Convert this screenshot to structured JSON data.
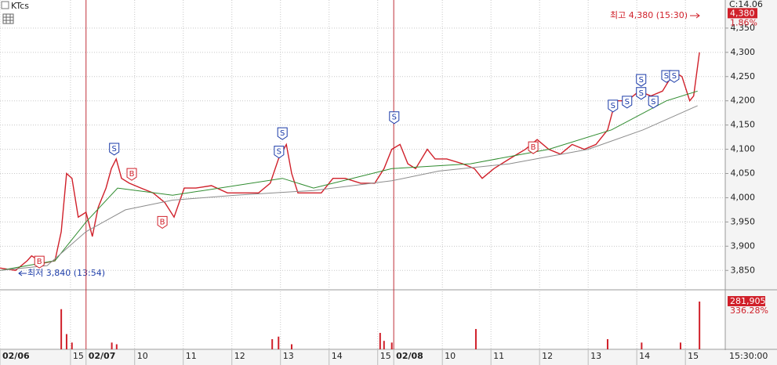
{
  "chart_data": {
    "type": "line",
    "title": "KTcs",
    "header_note": "C:14.06",
    "xlim": [
      0,
      14.92
    ],
    "xticks": [
      {
        "value": 0,
        "label": "02/06"
      },
      {
        "value": 1.45,
        "label": "15"
      },
      {
        "value": 1.77,
        "label": "02/07"
      },
      {
        "value": 2.77,
        "label": "10"
      },
      {
        "value": 3.77,
        "label": "11"
      },
      {
        "value": 4.77,
        "label": "12"
      },
      {
        "value": 5.77,
        "label": "13"
      },
      {
        "value": 6.77,
        "label": "14"
      },
      {
        "value": 7.77,
        "label": "15"
      },
      {
        "value": 8.1,
        "label": "02/08"
      },
      {
        "value": 9.1,
        "label": "10"
      },
      {
        "value": 10.1,
        "label": "11"
      },
      {
        "value": 11.1,
        "label": "12"
      },
      {
        "value": 12.1,
        "label": "13"
      },
      {
        "value": 13.1,
        "label": "14"
      },
      {
        "value": 14.1,
        "label": "15"
      }
    ],
    "time_label": "15:30:00",
    "ylim": [
      3810,
      4408
    ],
    "yticks": [
      {
        "value": 3850,
        "label": "3,850"
      },
      {
        "value": 3900,
        "label": "3,900"
      },
      {
        "value": 3950,
        "label": "3,950"
      },
      {
        "value": 4000,
        "label": "4,000"
      },
      {
        "value": 4050,
        "label": "4,050"
      },
      {
        "value": 4100,
        "label": "4,100"
      },
      {
        "value": 4150,
        "label": "4,150"
      },
      {
        "value": 4200,
        "label": "4,200"
      },
      {
        "value": 4250,
        "label": "4,250"
      },
      {
        "value": 4300,
        "label": "4,300"
      },
      {
        "value": 4350,
        "label": "4,350"
      }
    ],
    "grid": true,
    "series": [
      {
        "color": "#d0202a",
        "x": [
          0,
          0.32,
          0.56,
          0.65,
          0.89,
          1.13,
          1.26,
          1.37,
          1.48,
          1.61,
          1.77,
          1.9,
          2.02,
          2.18,
          2.29,
          2.39,
          2.5,
          2.66,
          2.9,
          3.15,
          3.39,
          3.58,
          3.79,
          4.03,
          4.35,
          4.68,
          5,
          5.32,
          5.56,
          5.73,
          5.89,
          6,
          6.13,
          6.37,
          6.61,
          6.85,
          7.1,
          7.42,
          7.71,
          7.9,
          8.06,
          8.23,
          8.39,
          8.55,
          8.79,
          8.95,
          9.19,
          9.52,
          9.76,
          9.92,
          10.16,
          10.48,
          10.81,
          11.05,
          11.29,
          11.53,
          11.77,
          12.02,
          12.26,
          12.5,
          12.66,
          12.9,
          13.15,
          13.39,
          13.63,
          13.87,
          14.03,
          14.19,
          14.27,
          14.39
        ],
        "values": [
          3855,
          3850,
          3870,
          3880,
          3865,
          3870,
          3930,
          4050,
          4040,
          3960,
          3970,
          3920,
          3980,
          4020,
          4060,
          4080,
          4040,
          4030,
          4020,
          4010,
          3990,
          3960,
          4020,
          4020,
          4025,
          4010,
          4010,
          4010,
          4030,
          4080,
          4110,
          4050,
          4010,
          4010,
          4010,
          4040,
          4040,
          4030,
          4030,
          4060,
          4100,
          4110,
          4070,
          4060,
          4100,
          4080,
          4080,
          4070,
          4060,
          4040,
          4060,
          4080,
          4100,
          4120,
          4100,
          4090,
          4110,
          4100,
          4110,
          4140,
          4200,
          4200,
          4220,
          4210,
          4220,
          4260,
          4250,
          4200,
          4210,
          4300
        ]
      },
      {
        "color": "#2e8b2e",
        "x": [
          0,
          1.13,
          1.77,
          2.42,
          3.55,
          5.81,
          6.45,
          8.06,
          9.68,
          11.29,
          12.58,
          13.71,
          14.35
        ],
        "values": [
          3850,
          3870,
          3950,
          4020,
          4005,
          4040,
          4020,
          4060,
          4070,
          4100,
          4140,
          4200,
          4220
        ]
      },
      {
        "color": "#8c8c8c",
        "x": [
          0,
          0.97,
          1.77,
          2.58,
          3.55,
          4.84,
          6.45,
          8.06,
          9.03,
          10.48,
          12.1,
          13.23,
          14.35
        ],
        "values": [
          3850,
          3860,
          3930,
          3975,
          3995,
          4005,
          4015,
          4035,
          4055,
          4070,
          4100,
          4140,
          4190
        ]
      }
    ],
    "signals": [
      {
        "label": "B",
        "x": 0.81,
        "value": 3868
      },
      {
        "label": "S",
        "x": 2.35,
        "value": 4101
      },
      {
        "label": "B",
        "x": 2.71,
        "value": 4049
      },
      {
        "label": "B",
        "x": 3.34,
        "value": 3950
      },
      {
        "label": "S",
        "x": 5.74,
        "value": 4095
      },
      {
        "label": "S",
        "x": 5.81,
        "value": 4133
      },
      {
        "label": "S",
        "x": 8.11,
        "value": 4166
      },
      {
        "label": "B",
        "x": 10.97,
        "value": 4104
      },
      {
        "label": "S",
        "x": 12.61,
        "value": 4190
      },
      {
        "label": "S",
        "x": 12.9,
        "value": 4198
      },
      {
        "label": "S",
        "x": 13.19,
        "value": 4216
      },
      {
        "label": "S",
        "x": 13.19,
        "value": 4243
      },
      {
        "label": "S",
        "x": 13.44,
        "value": 4198
      },
      {
        "label": "S",
        "x": 13.71,
        "value": 4251
      },
      {
        "label": "S",
        "x": 13.87,
        "value": 4251
      }
    ],
    "price_box": {
      "value": 4380,
      "label": "4,380",
      "change": "1.86%"
    },
    "high_note": "최고 4,380 (15:30)",
    "low_note": "최저 3,840 (13:54)",
    "volume": {
      "ylim": [
        0,
        342000
      ],
      "x": [
        1.26,
        1.37,
        1.48,
        2.3,
        2.4,
        5.6,
        5.73,
        6.0,
        7.82,
        7.9,
        8.06,
        9.79,
        12.5,
        13.2,
        14.0,
        14.39
      ],
      "values": [
        237000,
        90000,
        40000,
        40000,
        30000,
        60000,
        75000,
        30000,
        97000,
        50000,
        40000,
        120000,
        60000,
        40000,
        40000,
        281905
      ],
      "last_label": "281,905",
      "last_change": "336.28%"
    }
  }
}
